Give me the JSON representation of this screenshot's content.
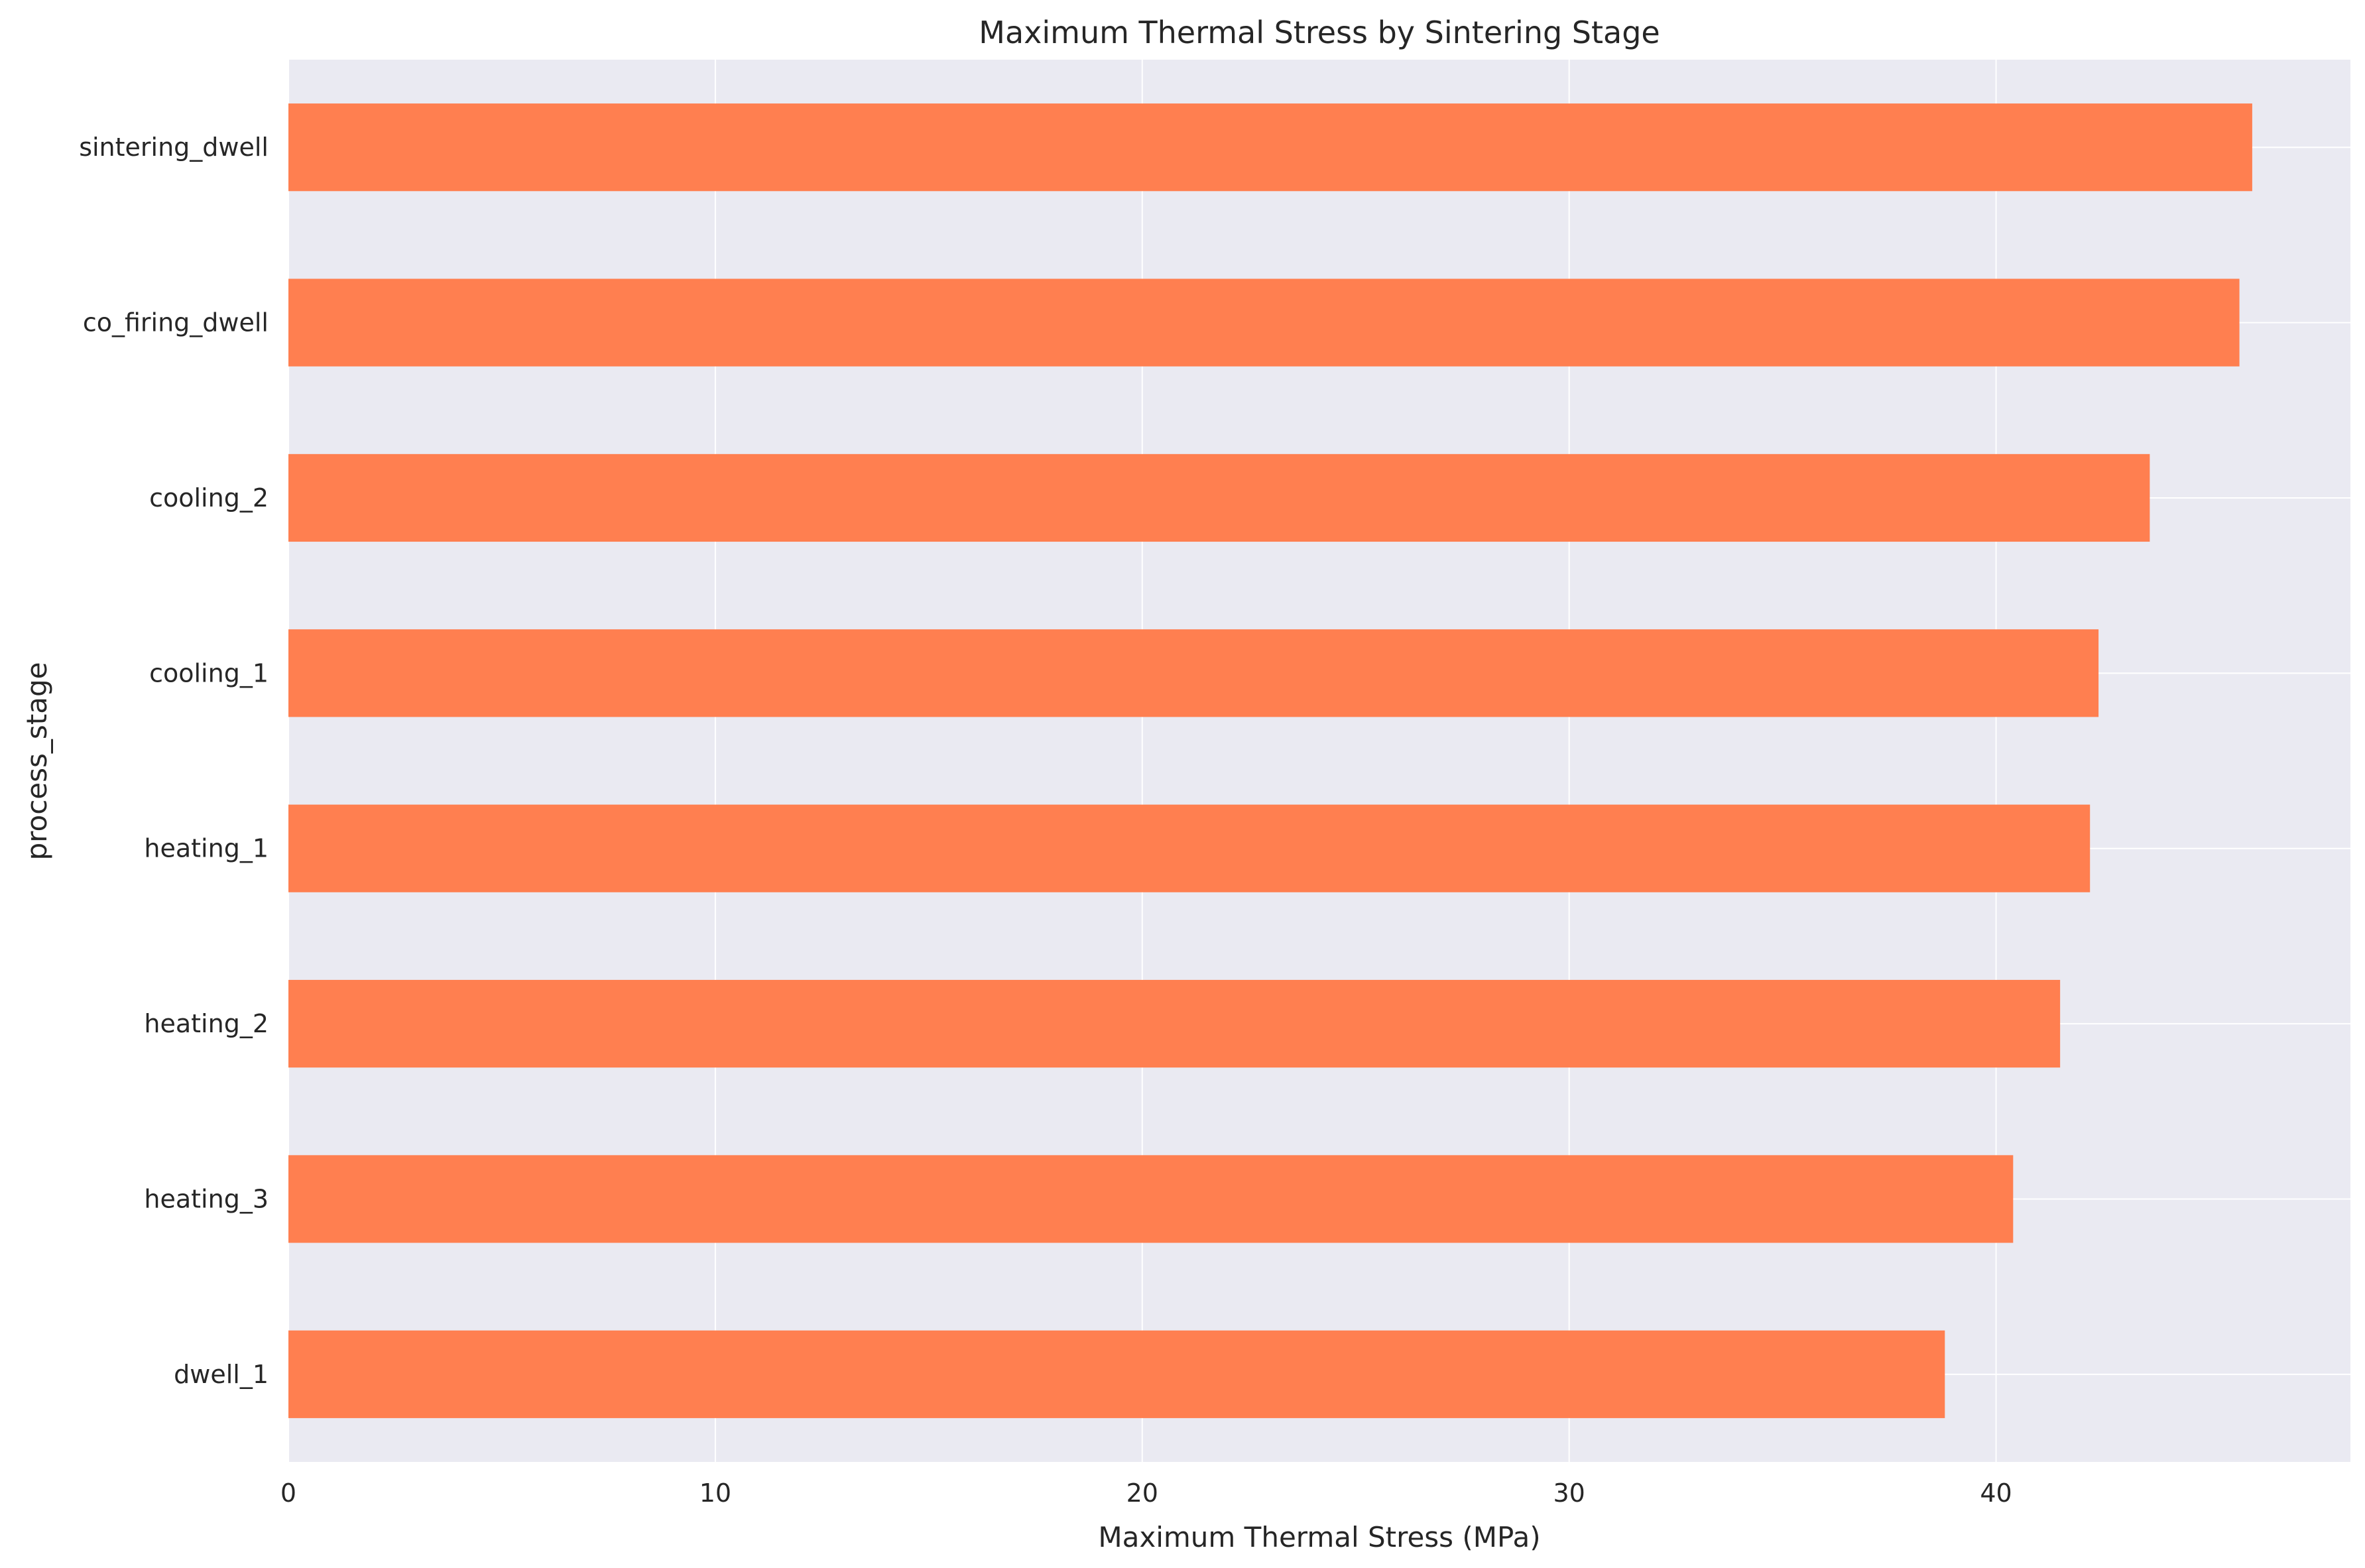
{
  "chart_data": {
    "type": "bar",
    "orientation": "horizontal",
    "title": "Maximum Thermal Stress by Sintering Stage",
    "xlabel": "Maximum Thermal Stress (MPa)",
    "ylabel": "process_stage",
    "categories": [
      "sintering_dwell",
      "co_firing_dwell",
      "cooling_2",
      "cooling_1",
      "heating_1",
      "heating_2",
      "heating_3",
      "dwell_1"
    ],
    "values": [
      46.0,
      45.7,
      43.6,
      42.4,
      42.2,
      41.5,
      40.4,
      38.8
    ],
    "xlim": [
      0,
      48.3
    ],
    "xticks": [
      0,
      10,
      20,
      30,
      40
    ],
    "grid": true,
    "colors": {
      "bar": "#ff7f50",
      "plot_background": "#eaeaf2",
      "grid": "#ffffff",
      "text": "#262626"
    }
  }
}
